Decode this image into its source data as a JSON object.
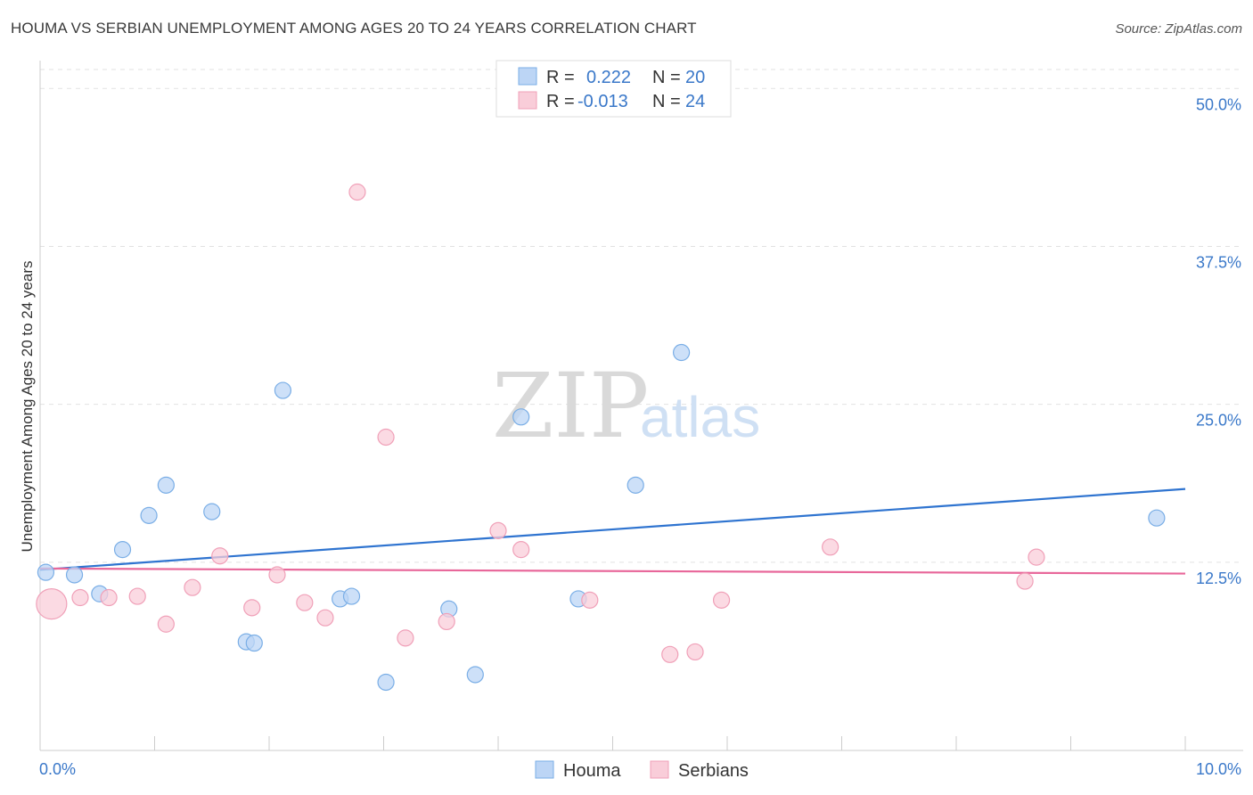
{
  "header": {
    "title": "HOUMA VS SERBIAN UNEMPLOYMENT AMONG AGES 20 TO 24 YEARS CORRELATION CHART",
    "source": "Source: ZipAtlas.com"
  },
  "watermark": {
    "zip": "ZIP",
    "atlas": "atlas"
  },
  "chart_data": {
    "type": "scatter",
    "title": "HOUMA VS SERBIAN UNEMPLOYMENT AMONG AGES 20 TO 24 YEARS CORRELATION CHART",
    "xlabel": "",
    "ylabel": "Unemployment Among Ages 20 to 24 years",
    "xlim": [
      0,
      10
    ],
    "ylim": [
      0,
      51.5
    ],
    "y_ticks": [
      12.5,
      25.0,
      37.5,
      50.0
    ],
    "y_tick_labels": [
      "12.5%",
      "25.0%",
      "37.5%",
      "50.0%"
    ],
    "x_tick_labels": [
      "0.0%",
      "10.0%"
    ],
    "grid": true,
    "legend_placement": "top-center",
    "stats": [
      {
        "r_label": "R =",
        "r": "0.222",
        "n_label": "N =",
        "n": "20"
      },
      {
        "r_label": "R =",
        "r": "-0.013",
        "n_label": "N =",
        "n": "24"
      }
    ],
    "series": [
      {
        "name": "Houma",
        "color": "#7aaee6",
        "fill": "#bcd5f5",
        "line_color": "#2f74d0",
        "trend": {
          "x": [
            0,
            10
          ],
          "y": [
            11.9,
            18.3
          ]
        },
        "points": [
          {
            "x": 0.05,
            "y": 11.7
          },
          {
            "x": 0.3,
            "y": 11.5
          },
          {
            "x": 0.52,
            "y": 10.0
          },
          {
            "x": 0.72,
            "y": 13.5
          },
          {
            "x": 0.95,
            "y": 16.2
          },
          {
            "x": 1.1,
            "y": 18.6
          },
          {
            "x": 1.5,
            "y": 16.5
          },
          {
            "x": 1.8,
            "y": 6.2
          },
          {
            "x": 1.87,
            "y": 6.1
          },
          {
            "x": 2.12,
            "y": 26.1
          },
          {
            "x": 2.62,
            "y": 9.6
          },
          {
            "x": 2.72,
            "y": 9.8
          },
          {
            "x": 3.02,
            "y": 3.0
          },
          {
            "x": 3.57,
            "y": 8.8
          },
          {
            "x": 3.8,
            "y": 3.6
          },
          {
            "x": 4.2,
            "y": 24.0
          },
          {
            "x": 4.7,
            "y": 9.6
          },
          {
            "x": 5.2,
            "y": 18.6
          },
          {
            "x": 5.6,
            "y": 29.1
          },
          {
            "x": 9.75,
            "y": 16.0
          }
        ]
      },
      {
        "name": "Serbians",
        "color": "#f0a0b8",
        "fill": "#f9cdd9",
        "line_color": "#e8679a",
        "trend": {
          "x": [
            0,
            10
          ],
          "y": [
            12.0,
            11.6
          ]
        },
        "points": [
          {
            "x": 0.1,
            "y": 9.2,
            "big": true
          },
          {
            "x": 0.35,
            "y": 9.7
          },
          {
            "x": 0.6,
            "y": 9.7
          },
          {
            "x": 0.85,
            "y": 9.8
          },
          {
            "x": 1.1,
            "y": 7.6
          },
          {
            "x": 1.33,
            "y": 10.5
          },
          {
            "x": 1.57,
            "y": 13.0
          },
          {
            "x": 1.85,
            "y": 8.9
          },
          {
            "x": 2.07,
            "y": 11.5
          },
          {
            "x": 2.31,
            "y": 9.3
          },
          {
            "x": 2.49,
            "y": 8.1
          },
          {
            "x": 2.77,
            "y": 41.8
          },
          {
            "x": 3.02,
            "y": 22.4
          },
          {
            "x": 3.19,
            "y": 6.5
          },
          {
            "x": 3.55,
            "y": 7.8
          },
          {
            "x": 4.0,
            "y": 15.0
          },
          {
            "x": 4.2,
            "y": 13.5
          },
          {
            "x": 4.8,
            "y": 9.5
          },
          {
            "x": 5.5,
            "y": 5.2
          },
          {
            "x": 5.72,
            "y": 5.4
          },
          {
            "x": 5.95,
            "y": 9.5
          },
          {
            "x": 6.9,
            "y": 13.7
          },
          {
            "x": 8.6,
            "y": 11.0
          },
          {
            "x": 8.7,
            "y": 12.9
          }
        ]
      }
    ]
  }
}
